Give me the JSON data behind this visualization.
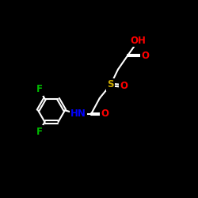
{
  "background_color": "#000000",
  "atom_colors": {
    "O": "#ff0000",
    "S": "#ccaa00",
    "N": "#0000ff",
    "F": "#00bb00"
  },
  "figsize": [
    2.5,
    2.5
  ],
  "dpi": 100
}
